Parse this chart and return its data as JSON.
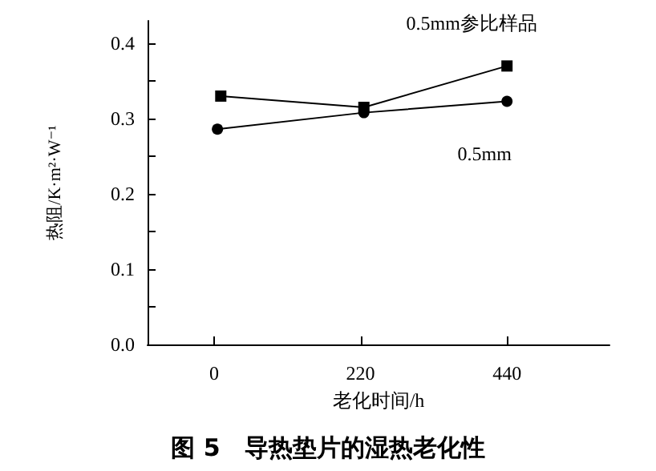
{
  "chart_data": {
    "type": "line",
    "title": "图 5　导热垫片的湿热老化性",
    "xlabel": "老化时间/h",
    "ylabel": "热阻/K·m²·W⁻¹",
    "xlim": [
      -100,
      594
    ],
    "xticks": [
      0,
      220,
      440
    ],
    "ylim": [
      0,
      0.43
    ],
    "yticks": [
      {
        "value": 0,
        "label": "0.0"
      },
      {
        "value": 0.05,
        "label": null
      },
      0.1,
      {
        "value": 0.15,
        "label": null
      },
      0.2,
      {
        "value": 0.25,
        "label": null
      },
      0.3,
      {
        "value": 0.35,
        "label": null
      },
      0.4
    ],
    "series": [
      {
        "name": "0.5mm参比样品",
        "color": "#000000",
        "marker": "square",
        "x": [
          10,
          225,
          440
        ],
        "values": [
          0.33,
          0.315,
          0.37
        ]
      },
      {
        "name": "0.5mm",
        "color": "#000000",
        "marker": "circle",
        "x": [
          5,
          225,
          440
        ],
        "values": [
          0.286,
          0.308,
          0.323
        ]
      }
    ],
    "grid": false,
    "legend": false,
    "line_style": "solid"
  }
}
